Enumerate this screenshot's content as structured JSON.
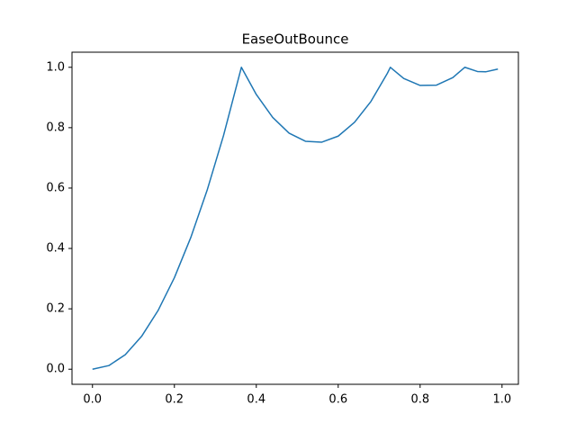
{
  "chart_data": {
    "type": "line",
    "title": "EaseOutBounce",
    "x": [
      0,
      0.04,
      0.08,
      0.12,
      0.16,
      0.2,
      0.24,
      0.28,
      0.32,
      0.3636,
      0.4,
      0.44,
      0.48,
      0.52,
      0.56,
      0.6,
      0.64,
      0.68,
      0.72,
      0.7273,
      0.76,
      0.8,
      0.84,
      0.88,
      0.9091,
      0.94,
      0.96,
      0.99
    ],
    "series": [
      {
        "color": "#1f77b4",
        "values": [
          0,
          0.012,
          0.048,
          0.109,
          0.194,
          0.303,
          0.436,
          0.593,
          0.774,
          1.0,
          0.91,
          0.834,
          0.782,
          0.755,
          0.752,
          0.772,
          0.818,
          0.887,
          0.98,
          1.0,
          0.963,
          0.94,
          0.941,
          0.966,
          1.0,
          0.986,
          0.985,
          0.994
        ]
      }
    ],
    "xlim": [
      -0.05,
      1.04
    ],
    "ylim": [
      -0.05,
      1.05
    ],
    "xticks": [
      {
        "value": 0,
        "label": "0.0"
      },
      {
        "value": 0.2,
        "label": "0.2"
      },
      {
        "value": 0.4,
        "label": "0.4"
      },
      {
        "value": 0.6,
        "label": "0.6"
      },
      {
        "value": 0.8,
        "label": "0.8"
      },
      {
        "value": 1,
        "label": "1.0"
      }
    ],
    "yticks": [
      {
        "value": 0,
        "label": "0.0"
      },
      {
        "value": 0.2,
        "label": "0.2"
      },
      {
        "value": 0.4,
        "label": "0.4"
      },
      {
        "value": 0.6,
        "label": "0.6"
      },
      {
        "value": 0.8,
        "label": "0.8"
      },
      {
        "value": 1,
        "label": "1.0"
      }
    ]
  }
}
